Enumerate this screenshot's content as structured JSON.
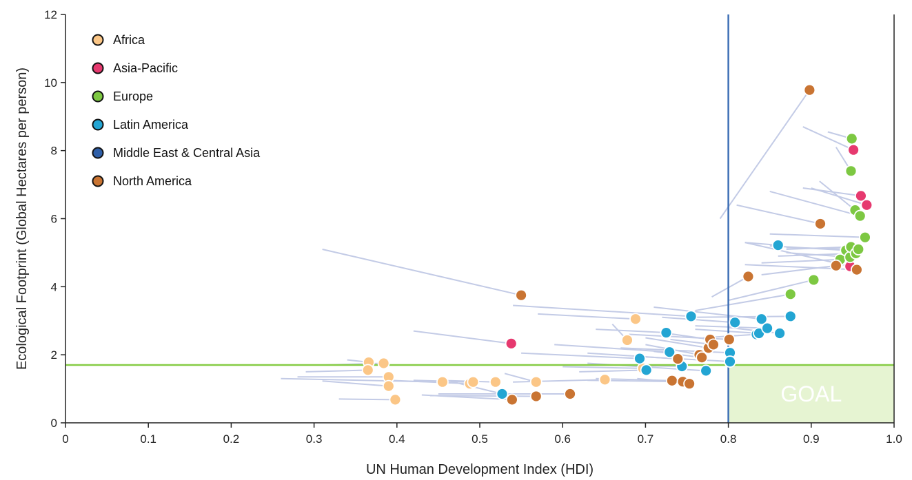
{
  "chart_data": {
    "type": "scatter",
    "xlabel": "UN Human Development Index (HDI)",
    "ylabel": "Ecological Footprint (Global Hectares per person)",
    "xlim": [
      0,
      1.0
    ],
    "ylim": [
      0,
      12
    ],
    "xticks": [
      "0",
      "0.1",
      "0.2",
      "0.3",
      "0.4",
      "0.5",
      "0.6",
      "0.7",
      "0.8",
      "0.9",
      "1.0"
    ],
    "yticks": [
      "0",
      "2",
      "4",
      "6",
      "8",
      "10",
      "12"
    ],
    "grid": false,
    "legend_position": "top-left",
    "reference_lines": {
      "hdi_threshold": 0.8,
      "biocapacity": 1.7
    },
    "colors": {
      "trail": "#c3cbe6",
      "threshold_line": "#3d6fb5",
      "biocapacity_line": "#86cc44",
      "goal_fill": "#e6f4d2"
    },
    "goal_region": {
      "label": "GOAL",
      "x": [
        0.8,
        1.0
      ],
      "y": [
        0,
        1.7
      ]
    },
    "series": [
      {
        "name": "Africa",
        "color": "#fbc686",
        "points": [
          {
            "x": 0.366,
            "y": 1.78,
            "x0": 0.34,
            "y0": 1.85
          },
          {
            "x": 0.365,
            "y": 1.55,
            "x0": 0.29,
            "y0": 1.5
          },
          {
            "x": 0.384,
            "y": 1.75,
            "x0": 0.31,
            "y0": 1.7
          },
          {
            "x": 0.39,
            "y": 1.35,
            "x0": 0.28,
            "y0": 1.35
          },
          {
            "x": 0.39,
            "y": 1.08,
            "x0": 0.31,
            "y0": 1.23
          },
          {
            "x": 0.398,
            "y": 0.68,
            "x0": 0.33,
            "y0": 0.7
          },
          {
            "x": 0.455,
            "y": 1.2,
            "x0": 0.26,
            "y0": 1.3
          },
          {
            "x": 0.488,
            "y": 1.15,
            "x0": 0.39,
            "y0": 1.25
          },
          {
            "x": 0.492,
            "y": 1.2,
            "x0": 0.42,
            "y0": 1.25
          },
          {
            "x": 0.519,
            "y": 1.2,
            "x0": 0.45,
            "y0": 1.25
          },
          {
            "x": 0.568,
            "y": 1.2,
            "x0": 0.53,
            "y0": 1.45
          },
          {
            "x": 0.651,
            "y": 1.27,
            "x0": 0.54,
            "y0": 1.2
          },
          {
            "x": 0.678,
            "y": 2.43,
            "x0": 0.66,
            "y0": 2.9
          },
          {
            "x": 0.688,
            "y": 3.05,
            "x0": 0.57,
            "y0": 3.2
          },
          {
            "x": 0.697,
            "y": 1.6,
            "x0": 0.6,
            "y0": 1.65
          }
        ]
      },
      {
        "name": "Asia-Pacific",
        "color": "#e6396f",
        "points": [
          {
            "x": 0.538,
            "y": 2.33,
            "x0": 0.42,
            "y0": 2.7
          },
          {
            "x": 0.947,
            "y": 4.6,
            "x0": 0.82,
            "y0": 5.3
          },
          {
            "x": 0.951,
            "y": 8.02,
            "x0": 0.89,
            "y0": 8.7
          },
          {
            "x": 0.96,
            "y": 6.67,
            "x0": 0.89,
            "y0": 6.9
          },
          {
            "x": 0.967,
            "y": 6.4,
            "x0": 0.9,
            "y0": 6.9
          }
        ]
      },
      {
        "name": "Europe",
        "color": "#7dc842",
        "points": [
          {
            "x": 0.875,
            "y": 3.78,
            "x0": 0.76,
            "y0": 3.3
          },
          {
            "x": 0.903,
            "y": 4.2,
            "x0": 0.8,
            "y0": 3.6
          },
          {
            "x": 0.935,
            "y": 4.8,
            "x0": 0.84,
            "y0": 4.7
          },
          {
            "x": 0.942,
            "y": 5.07,
            "x0": 0.85,
            "y0": 5.2
          },
          {
            "x": 0.947,
            "y": 4.87,
            "x0": 0.87,
            "y0": 5.0
          },
          {
            "x": 0.948,
            "y": 5.17,
            "x0": 0.87,
            "y0": 5.1
          },
          {
            "x": 0.948,
            "y": 7.4,
            "x0": 0.93,
            "y0": 8.1
          },
          {
            "x": 0.949,
            "y": 8.35,
            "x0": 0.92,
            "y0": 8.55
          },
          {
            "x": 0.953,
            "y": 6.25,
            "x0": 0.91,
            "y0": 7.1
          },
          {
            "x": 0.954,
            "y": 4.98,
            "x0": 0.86,
            "y0": 4.9
          },
          {
            "x": 0.957,
            "y": 5.1,
            "x0": 0.87,
            "y0": 5.15
          },
          {
            "x": 0.959,
            "y": 6.08,
            "x0": 0.85,
            "y0": 6.8
          },
          {
            "x": 0.965,
            "y": 5.45,
            "x0": 0.85,
            "y0": 5.55
          }
        ]
      },
      {
        "name": "Latin America",
        "color": "#23a5d3",
        "points": [
          {
            "x": 0.527,
            "y": 0.85,
            "x0": 0.46,
            "y0": 1.25
          },
          {
            "x": 0.693,
            "y": 1.89,
            "x0": 0.55,
            "y0": 2.05
          },
          {
            "x": 0.701,
            "y": 1.55,
            "x0": 0.62,
            "y0": 1.5
          },
          {
            "x": 0.725,
            "y": 2.65,
            "x0": 0.64,
            "y0": 2.75
          },
          {
            "x": 0.729,
            "y": 2.08,
            "x0": 0.59,
            "y0": 2.3
          },
          {
            "x": 0.744,
            "y": 1.66,
            "x0": 0.64,
            "y0": 1.7
          },
          {
            "x": 0.755,
            "y": 3.13,
            "x0": 0.54,
            "y0": 3.45
          },
          {
            "x": 0.773,
            "y": 1.53,
            "x0": 0.63,
            "y0": 1.75
          },
          {
            "x": 0.802,
            "y": 2.06,
            "x0": 0.67,
            "y0": 2.2
          },
          {
            "x": 0.802,
            "y": 1.8,
            "x0": 0.69,
            "y0": 1.95
          },
          {
            "x": 0.808,
            "y": 2.95,
            "x0": 0.72,
            "y0": 3.1
          },
          {
            "x": 0.834,
            "y": 2.6,
            "x0": 0.77,
            "y0": 2.5
          },
          {
            "x": 0.837,
            "y": 2.63,
            "x0": 0.76,
            "y0": 2.75
          },
          {
            "x": 0.84,
            "y": 3.05,
            "x0": 0.71,
            "y0": 3.4
          },
          {
            "x": 0.847,
            "y": 2.78,
            "x0": 0.76,
            "y0": 2.85
          },
          {
            "x": 0.86,
            "y": 5.22,
            "x0": 0.82,
            "y0": 5.3
          },
          {
            "x": 0.862,
            "y": 2.63,
            "x0": 0.8,
            "y0": 2.8
          },
          {
            "x": 0.875,
            "y": 3.13,
            "x0": 0.75,
            "y0": 3.1
          }
        ]
      },
      {
        "name": "Middle East & Central Asia",
        "color": "#2f5fa8",
        "points": []
      },
      {
        "name": "North America",
        "color": "#c97432",
        "points": [
          {
            "x": 0.539,
            "y": 0.68,
            "x0": 0.43,
            "y0": 0.82
          },
          {
            "x": 0.55,
            "y": 3.75,
            "x0": 0.31,
            "y0": 5.1
          },
          {
            "x": 0.568,
            "y": 0.78,
            "x0": 0.44,
            "y0": 0.8
          },
          {
            "x": 0.609,
            "y": 0.85,
            "x0": 0.45,
            "y0": 0.85
          },
          {
            "x": 0.732,
            "y": 1.24,
            "x0": 0.64,
            "y0": 1.3
          },
          {
            "x": 0.739,
            "y": 1.88,
            "x0": 0.63,
            "y0": 2.05
          },
          {
            "x": 0.745,
            "y": 1.21,
            "x0": 0.63,
            "y0": 1.25
          },
          {
            "x": 0.753,
            "y": 1.15,
            "x0": 0.69,
            "y0": 1.3
          },
          {
            "x": 0.765,
            "y": 2.0,
            "x0": 0.7,
            "y0": 2.3
          },
          {
            "x": 0.768,
            "y": 1.92,
            "x0": 0.71,
            "y0": 2.1
          },
          {
            "x": 0.776,
            "y": 2.2,
            "x0": 0.7,
            "y0": 2.5
          },
          {
            "x": 0.778,
            "y": 2.45,
            "x0": 0.72,
            "y0": 2.65
          },
          {
            "x": 0.782,
            "y": 2.3,
            "x0": 0.73,
            "y0": 2.45
          },
          {
            "x": 0.801,
            "y": 2.45,
            "x0": 0.68,
            "y0": 2.6
          },
          {
            "x": 0.824,
            "y": 4.3,
            "x0": 0.78,
            "y0": 3.7
          },
          {
            "x": 0.898,
            "y": 9.78,
            "x0": 0.79,
            "y0": 6.0
          },
          {
            "x": 0.911,
            "y": 5.85,
            "x0": 0.81,
            "y0": 6.4
          },
          {
            "x": 0.93,
            "y": 4.62,
            "x0": 0.84,
            "y0": 4.35
          },
          {
            "x": 0.955,
            "y": 4.5,
            "x0": 0.82,
            "y0": 4.65
          }
        ]
      }
    ]
  }
}
